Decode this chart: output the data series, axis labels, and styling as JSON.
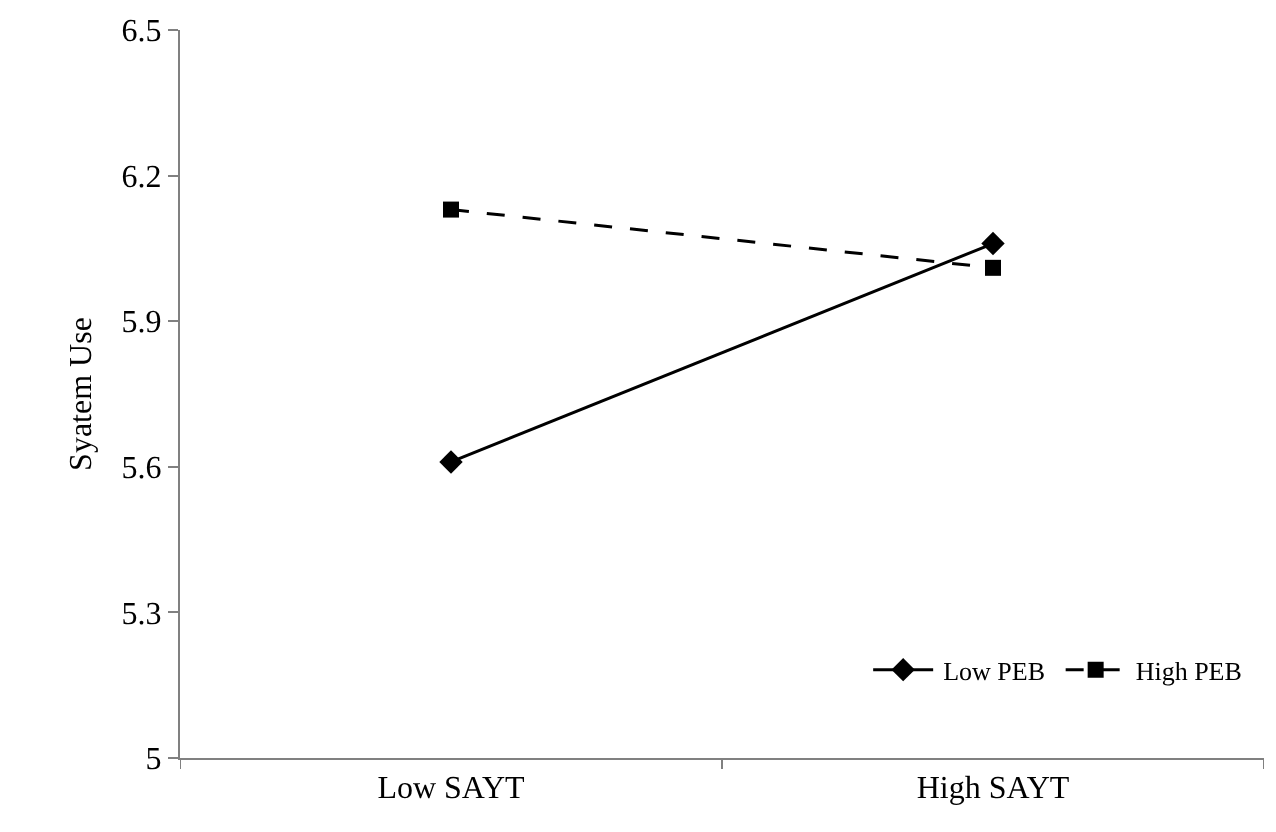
{
  "chart_data": {
    "type": "line",
    "ylabel": "Syatem Use",
    "categories": [
      "Low SAYT",
      "High SAYT"
    ],
    "series": [
      {
        "name": "Low PEB",
        "color": "#000000",
        "values": [
          5.61,
          6.06
        ],
        "marker": "diamond",
        "line_style": "solid"
      },
      {
        "name": "High PEB",
        "color": "#000000",
        "values": [
          6.13,
          6.01
        ],
        "marker": "square",
        "line_style": "dashed"
      }
    ],
    "ylim": [
      5,
      6.5
    ],
    "yticks": [
      5,
      5.3,
      5.6,
      5.9,
      6.2,
      6.5
    ],
    "legend": "bottom right"
  }
}
